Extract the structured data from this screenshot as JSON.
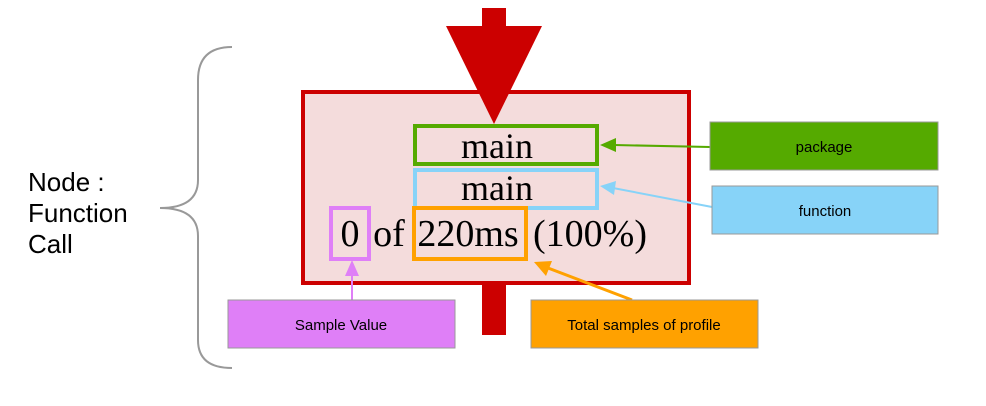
{
  "title_lines": [
    "Node :",
    "Function",
    "Call"
  ],
  "node": {
    "package_label": "main",
    "function_label": "main",
    "sample_value": "0",
    "of_text": "of",
    "total_samples": "220ms",
    "percent_text": "(100%)"
  },
  "callouts": {
    "package": "package",
    "function": "function",
    "sample_value": "Sample Value",
    "total_samples": "Total samples of profile"
  },
  "colors": {
    "node_border": "#cc0000",
    "node_fill": "#f4dcdc",
    "arrow": "#cc0000",
    "package": "#55aa00",
    "function": "#87d3f8",
    "sample_value": "#df7ff7",
    "total_samples": "#ffa100",
    "brace": "#999999"
  }
}
